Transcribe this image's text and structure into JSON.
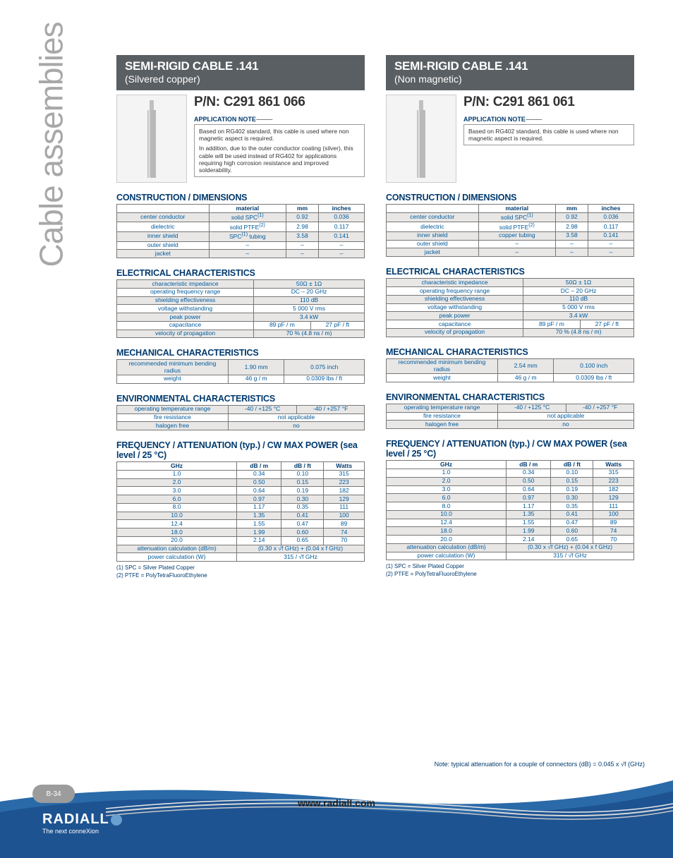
{
  "sidebar": {
    "label": "Cable assemblies"
  },
  "columns": [
    {
      "header_title": "SEMI-RIGID CABLE .141",
      "header_sub": "(Silvered copper)",
      "pn": "P/N: C291 861 066",
      "app_note_title": "APPLICATION NOTE",
      "app_note": [
        "Based on RG402 standard, this cable is used where non magnetic aspect is required.",
        "In addition, due to the outer conductor coating (silver), this cable will be used instead of RG402 for applications requiring high corrosion resistance and improved solderability."
      ],
      "construction": {
        "title": "CONSTRUCTION / DIMENSIONS",
        "headers": [
          "",
          "material",
          "mm",
          "inches"
        ],
        "rows": [
          [
            "center conductor",
            "solid SPC(1)",
            "0.92",
            "0.036"
          ],
          [
            "dielectric",
            "solid PTFE(2)",
            "2.98",
            "0.117"
          ],
          [
            "inner shield",
            "SPC(1) tubing",
            "3.58",
            "0.141"
          ],
          [
            "outer shield",
            "–",
            "–",
            "–"
          ],
          [
            "jacket",
            "–",
            "–",
            "–"
          ]
        ]
      },
      "electrical": {
        "title": "ELECTRICAL CHARACTERISTICS",
        "rows": [
          [
            "characteristic impedance",
            "50Ω ± 1Ω",
            ""
          ],
          [
            "operating frequency range",
            "DC – 20 GHz",
            ""
          ],
          [
            "shielding effectiveness",
            "110 dB",
            ""
          ],
          [
            "voltage withstanding",
            "5 000 V rms",
            ""
          ],
          [
            "peak power",
            "3.4 kW",
            ""
          ],
          [
            "capacitance",
            "89 pF / m",
            "27 pF / ft"
          ],
          [
            "velocity of propagation",
            "70 % (4.8 ns / m)",
            ""
          ]
        ]
      },
      "mechanical": {
        "title": "MECHANICAL CHARACTERISTICS",
        "rows": [
          [
            "recommended minimum bending radius",
            "1.90 mm",
            "0.075 inch"
          ],
          [
            "weight",
            "46 g / m",
            "0.0309 lbs / ft"
          ]
        ]
      },
      "environmental": {
        "title": "ENVIRONMENTAL CHARACTERISTICS",
        "rows": [
          [
            "operating temperature range",
            "-40 / +125 °C",
            "-40 / +257 °F"
          ],
          [
            "fire resistance",
            "not applicable",
            ""
          ],
          [
            "halogen free",
            "no",
            ""
          ]
        ]
      },
      "attenuation": {
        "title": "FREQUENCY / ATTENUATION (typ.) / CW MAX POWER (sea level / 25 °C)",
        "headers": [
          "GHz",
          "dB / m",
          "dB / ft",
          "Watts"
        ],
        "rows": [
          [
            "1.0",
            "0.34",
            "0.10",
            "315"
          ],
          [
            "2.0",
            "0.50",
            "0.15",
            "223"
          ],
          [
            "3.0",
            "0.64",
            "0.19",
            "182"
          ],
          [
            "6.0",
            "0.97",
            "0.30",
            "129"
          ],
          [
            "8.0",
            "1.17",
            "0.35",
            "111"
          ],
          [
            "10.0",
            "1.35",
            "0.41",
            "100"
          ],
          [
            "12.4",
            "1.55",
            "0.47",
            "89"
          ],
          [
            "18.0",
            "1.99",
            "0.60",
            "74"
          ],
          [
            "20.0",
            "2.14",
            "0.65",
            "70"
          ]
        ],
        "calc_rows": [
          [
            "attenuation calculation (dB/m)",
            "(0.30 x √f GHz) + (0.04 x f GHz)"
          ],
          [
            "power calculation (W)",
            "315 / √f GHz"
          ]
        ]
      },
      "footnotes": [
        "(1) SPC = Silver Plated Copper",
        "(2) PTFE = PolyTetraFluoroEthylene"
      ]
    },
    {
      "header_title": "SEMI-RIGID CABLE .141",
      "header_sub": "(Non magnetic)",
      "pn": "P/N: C291 861 061",
      "app_note_title": "APPLICATION NOTE",
      "app_note": [
        "Based on RG402 standard, this cable is used where non magnetic aspect is required."
      ],
      "construction": {
        "title": "CONSTRUCTION / DIMENSIONS",
        "headers": [
          "",
          "material",
          "mm",
          "inches"
        ],
        "rows": [
          [
            "center conductor",
            "solid SPC(1)",
            "0.92",
            "0.036"
          ],
          [
            "dielectric",
            "solid PTFE(2)",
            "2.98",
            "0.117"
          ],
          [
            "inner shield",
            "copper tubing",
            "3.58",
            "0.141"
          ],
          [
            "outer shield",
            "–",
            "–",
            "–"
          ],
          [
            "jacket",
            "–",
            "–",
            "–"
          ]
        ]
      },
      "electrical": {
        "title": "ELECTRICAL CHARACTERISTICS",
        "rows": [
          [
            "characteristic impedance",
            "50Ω ± 1Ω",
            ""
          ],
          [
            "operating frequency range",
            "DC – 20 GHz",
            ""
          ],
          [
            "shielding effectiveness",
            "110 dB",
            ""
          ],
          [
            "voltage withstanding",
            "5 000 V rms",
            ""
          ],
          [
            "peak power",
            "3.4 kW",
            ""
          ],
          [
            "capacitance",
            "89 pF / m",
            "27 pF / ft"
          ],
          [
            "velocity of propagation",
            "70 % (4.8 ns / m)",
            ""
          ]
        ]
      },
      "mechanical": {
        "title": "MECHANICAL CHARACTERISTICS",
        "rows": [
          [
            "recommended minimum bending radius",
            "2.54 mm",
            "0.100 inch"
          ],
          [
            "weight",
            "46 g / m",
            "0.0309 lbs / ft"
          ]
        ]
      },
      "environmental": {
        "title": "ENVIRONMENTAL CHARACTERISTICS",
        "rows": [
          [
            "operating temperature range",
            "-40 / +125 °C",
            "-40 / +257 °F"
          ],
          [
            "fire resistance",
            "not applicable",
            ""
          ],
          [
            "halogen free",
            "no",
            ""
          ]
        ]
      },
      "attenuation": {
        "title": "FREQUENCY / ATTENUATION (typ.) / CW MAX POWER (sea level / 25 °C)",
        "headers": [
          "GHz",
          "dB / m",
          "dB / ft",
          "Watts"
        ],
        "rows": [
          [
            "1.0",
            "0.34",
            "0.10",
            "315"
          ],
          [
            "2.0",
            "0.50",
            "0.15",
            "223"
          ],
          [
            "3.0",
            "0.64",
            "0.19",
            "182"
          ],
          [
            "6.0",
            "0.97",
            "0.30",
            "129"
          ],
          [
            "8.0",
            "1.17",
            "0.35",
            "111"
          ],
          [
            "10.0",
            "1.35",
            "0.41",
            "100"
          ],
          [
            "12.4",
            "1.55",
            "0.47",
            "89"
          ],
          [
            "18.0",
            "1.99",
            "0.60",
            "74"
          ],
          [
            "20.0",
            "2.14",
            "0.65",
            "70"
          ]
        ],
        "calc_rows": [
          [
            "attenuation calculation (dB/m)",
            "(0.30 x √f GHz) + (0.04 x f GHz)"
          ],
          [
            "power calculation (W)",
            "315 / √f GHz"
          ]
        ]
      },
      "footnotes": [
        "(1) SPC = Silver Plated Copper",
        "(2) PTFE = PolyTetraFluoroEthylene"
      ]
    }
  ],
  "bottom_note": "Note: typical attenuation for a couple of connectors (dB) = 0.045 x √f (GHz)",
  "page_num": "B-34",
  "brand": "RADIALL",
  "tagline": "The next conneXion",
  "url": "www.radiall.com",
  "colors": {
    "header_bg": "#5a5f63",
    "section_title": "#003a6e",
    "table_text": "#005a9c",
    "row_stripe": "#e8e7e6",
    "sidebar_text": "#a8a8a8"
  }
}
